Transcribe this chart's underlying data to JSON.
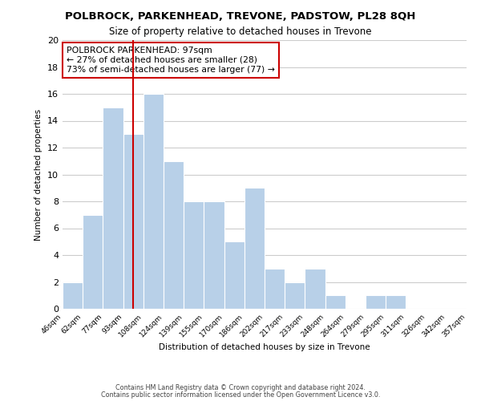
{
  "title": "POLBROCK, PARKENHEAD, TREVONE, PADSTOW, PL28 8QH",
  "subtitle": "Size of property relative to detached houses in Trevone",
  "xlabel": "Distribution of detached houses by size in Trevone",
  "ylabel": "Number of detached properties",
  "footer_line1": "Contains HM Land Registry data © Crown copyright and database right 2024.",
  "footer_line2": "Contains public sector information licensed under the Open Government Licence v3.0.",
  "bin_edges": [
    "46sqm",
    "62sqm",
    "77sqm",
    "93sqm",
    "108sqm",
    "124sqm",
    "139sqm",
    "155sqm",
    "170sqm",
    "186sqm",
    "202sqm",
    "217sqm",
    "233sqm",
    "248sqm",
    "264sqm",
    "279sqm",
    "295sqm",
    "311sqm",
    "326sqm",
    "342sqm",
    "357sqm"
  ],
  "bar_heights": [
    2,
    7,
    15,
    13,
    16,
    11,
    8,
    8,
    5,
    9,
    3,
    2,
    3,
    1,
    0,
    1,
    1,
    0,
    0,
    0
  ],
  "bar_color": "#b8d0e8",
  "grid_color": "#cccccc",
  "vline_x": 3.5,
  "vline_color": "#cc0000",
  "annotation_title": "POLBROCK PARKENHEAD: 97sqm",
  "annotation_line1": "← 27% of detached houses are smaller (28)",
  "annotation_line2": "73% of semi-detached houses are larger (77) →",
  "annotation_box_color": "#ffffff",
  "annotation_box_edge": "#cc0000",
  "ylim": [
    0,
    20
  ],
  "yticks": [
    0,
    2,
    4,
    6,
    8,
    10,
    12,
    14,
    16,
    18,
    20
  ]
}
